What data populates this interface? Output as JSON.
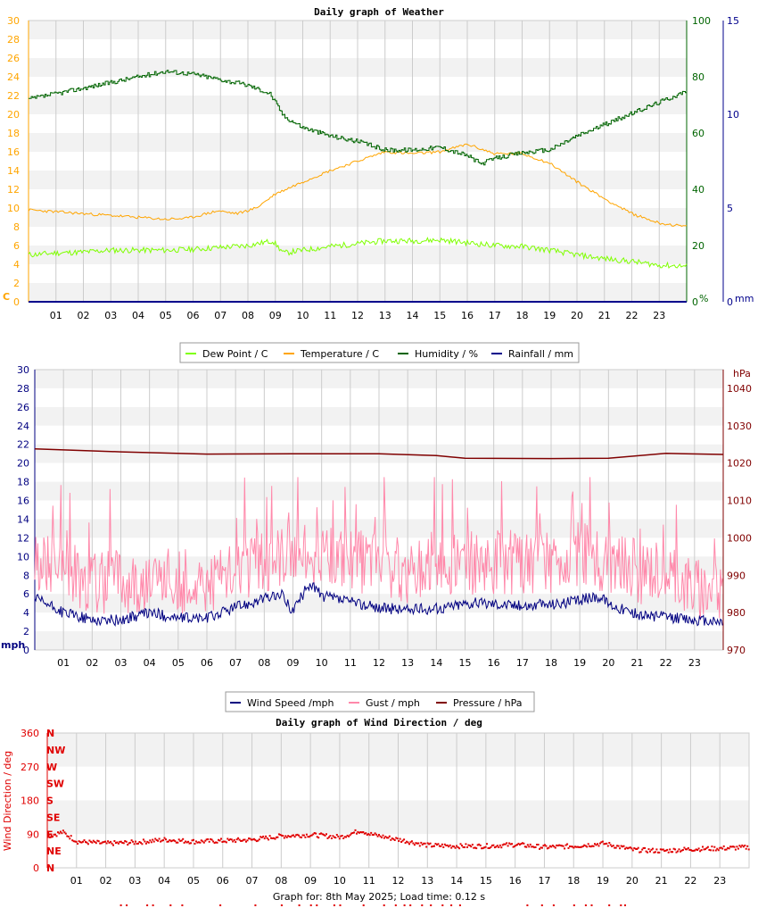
{
  "hours": [
    "01",
    "02",
    "03",
    "04",
    "05",
    "06",
    "07",
    "08",
    "09",
    "10",
    "11",
    "12",
    "13",
    "14",
    "15",
    "16",
    "17",
    "18",
    "19",
    "20",
    "21",
    "22",
    "23"
  ],
  "colors": {
    "dewpoint": "#7fff00",
    "temperature": "#ffa500",
    "humidity": "#006400",
    "rainfall": "#00008b",
    "wind": "#000080",
    "gust": "#ff88aa",
    "pressure": "#800000",
    "direction": "#e00000",
    "temp_axis": "#ffa500",
    "hum_axis": "#006400",
    "rain_axis": "#00008b",
    "wind_axis": "#000080",
    "pres_axis": "#800000",
    "dir_axis": "#e00000"
  },
  "chart_data": [
    {
      "type": "line",
      "title": "Daily graph of Weather",
      "left_axis": {
        "unit": "C",
        "ticks": [
          "0",
          "2",
          "4",
          "6",
          "8",
          "10",
          "12",
          "14",
          "16",
          "18",
          "20",
          "22",
          "24",
          "26",
          "28",
          "30"
        ],
        "range": [
          0,
          30
        ]
      },
      "mid_axis": {
        "unit": "%",
        "ticks": [
          "0",
          "20",
          "40",
          "60",
          "80",
          "100"
        ],
        "range": [
          0,
          100
        ]
      },
      "right_axis": {
        "unit": "mm",
        "ticks": [
          "0",
          "5",
          "10",
          "15"
        ],
        "range": [
          0,
          15
        ]
      },
      "x_hours_range": [
        0,
        24
      ],
      "series": [
        {
          "name": "Dew Point / C",
          "key": "dewpoint",
          "axis": "left",
          "points": [
            [
              0,
              5.0
            ],
            [
              1,
              5.2
            ],
            [
              2,
              5.3
            ],
            [
              3,
              5.5
            ],
            [
              4,
              5.5
            ],
            [
              5,
              5.5
            ],
            [
              6,
              5.6
            ],
            [
              7,
              5.8
            ],
            [
              8,
              6.0
            ],
            [
              8.9,
              6.5
            ],
            [
              9.3,
              5.2
            ],
            [
              10,
              5.5
            ],
            [
              11,
              5.9
            ],
            [
              12,
              6.2
            ],
            [
              13,
              6.5
            ],
            [
              14,
              6.5
            ],
            [
              15,
              6.6
            ],
            [
              16,
              6.3
            ],
            [
              17,
              6.0
            ],
            [
              18,
              5.9
            ],
            [
              19,
              5.5
            ],
            [
              20,
              5.0
            ],
            [
              21,
              4.6
            ],
            [
              22,
              4.3
            ],
            [
              23,
              3.9
            ],
            [
              24,
              3.8
            ]
          ]
        },
        {
          "name": "Temperature / C",
          "key": "temperature",
          "axis": "left",
          "points": [
            [
              0,
              9.8
            ],
            [
              1,
              9.6
            ],
            [
              2,
              9.4
            ],
            [
              3,
              9.2
            ],
            [
              4,
              9.0
            ],
            [
              5,
              8.8
            ],
            [
              5.8,
              8.9
            ],
            [
              6.9,
              9.7
            ],
            [
              7.6,
              9.4
            ],
            [
              8.3,
              10.0
            ],
            [
              9,
              11.5
            ],
            [
              10,
              12.8
            ],
            [
              11,
              14.0
            ],
            [
              12,
              15.0
            ],
            [
              13,
              16.0
            ],
            [
              14,
              15.8
            ],
            [
              15,
              16.0
            ],
            [
              16,
              16.8
            ],
            [
              17,
              15.8
            ],
            [
              18,
              15.8
            ],
            [
              19,
              14.8
            ],
            [
              20,
              12.8
            ],
            [
              21,
              11.0
            ],
            [
              22,
              9.4
            ],
            [
              23,
              8.4
            ],
            [
              24,
              8.0
            ]
          ]
        },
        {
          "name": "Humidity / %",
          "key": "humidity",
          "axis": "mid",
          "points": [
            [
              0,
              72
            ],
            [
              1,
              74
            ],
            [
              2,
              76
            ],
            [
              3,
              78
            ],
            [
              4,
              80
            ],
            [
              5,
              82
            ],
            [
              6,
              81
            ],
            [
              7,
              79
            ],
            [
              8,
              77
            ],
            [
              8.8,
              74
            ],
            [
              9.3,
              66
            ],
            [
              10,
              62
            ],
            [
              11,
              59
            ],
            [
              12,
              57
            ],
            [
              13,
              54
            ],
            [
              14,
              54
            ],
            [
              15,
              55
            ],
            [
              16,
              52
            ],
            [
              16.5,
              49
            ],
            [
              17,
              51
            ],
            [
              18,
              53
            ],
            [
              19,
              54
            ],
            [
              20,
              59
            ],
            [
              21,
              63
            ],
            [
              22,
              67
            ],
            [
              23,
              71
            ],
            [
              24,
              75
            ]
          ]
        },
        {
          "name": "Rainfall / mm",
          "key": "rainfall",
          "axis": "right",
          "points": [
            [
              0,
              0
            ],
            [
              24,
              0
            ]
          ]
        }
      ]
    },
    {
      "type": "line",
      "left_axis": {
        "unit": "mph",
        "ticks": [
          "0",
          "2",
          "4",
          "6",
          "8",
          "10",
          "12",
          "14",
          "16",
          "18",
          "20",
          "22",
          "24",
          "26",
          "28",
          "30"
        ],
        "range": [
          0,
          30
        ]
      },
      "right_axis": {
        "unit": "hPa",
        "ticks": [
          "970",
          "980",
          "990",
          "1000",
          "1010",
          "1020",
          "1030",
          "1040"
        ],
        "range": [
          970,
          1045
        ]
      },
      "x_hours_range": [
        0,
        24
      ],
      "series": [
        {
          "name": "Wind Speed /mph",
          "key": "wind",
          "axis": "left",
          "points": [
            [
              0,
              5.5
            ],
            [
              1,
              4.0
            ],
            [
              2,
              3.2
            ],
            [
              3,
              3.2
            ],
            [
              4,
              4.0
            ],
            [
              5,
              3.4
            ],
            [
              6,
              3.4
            ],
            [
              7,
              4.6
            ],
            [
              8,
              5.5
            ],
            [
              8.6,
              5.9
            ],
            [
              9,
              4.2
            ],
            [
              9.6,
              7.2
            ],
            [
              10,
              5.8
            ],
            [
              11,
              5.1
            ],
            [
              12,
              4.5
            ],
            [
              13,
              4.3
            ],
            [
              14,
              4.4
            ],
            [
              15,
              5.0
            ],
            [
              16,
              5.0
            ],
            [
              17,
              4.7
            ],
            [
              18,
              4.9
            ],
            [
              19,
              5.3
            ],
            [
              19.6,
              5.8
            ],
            [
              20,
              5.0
            ],
            [
              21,
              3.8
            ],
            [
              22,
              3.5
            ],
            [
              23,
              3.2
            ],
            [
              24,
              3.0
            ]
          ]
        },
        {
          "name": "Gust / mph",
          "key": "gust",
          "axis": "left",
          "points": [
            [
              0,
              9
            ],
            [
              1,
              8
            ],
            [
              2,
              7
            ],
            [
              3,
              7
            ],
            [
              4,
              7
            ],
            [
              5,
              7
            ],
            [
              6,
              7
            ],
            [
              7,
              8
            ],
            [
              8,
              9
            ],
            [
              9,
              10
            ],
            [
              10,
              10
            ],
            [
              11,
              9
            ],
            [
              12,
              9
            ],
            [
              13,
              8
            ],
            [
              14,
              9
            ],
            [
              15,
              9
            ],
            [
              16,
              9
            ],
            [
              17,
              9
            ],
            [
              18,
              9
            ],
            [
              19,
              10
            ],
            [
              20,
              9
            ],
            [
              21,
              8
            ],
            [
              22,
              8
            ],
            [
              23,
              6
            ],
            [
              24,
              6
            ]
          ]
        },
        {
          "name": "Pressure / hPa",
          "key": "pressure",
          "axis": "right",
          "points": [
            [
              0,
              1023.8
            ],
            [
              3,
              1023.0
            ],
            [
              6,
              1022.4
            ],
            [
              9,
              1022.5
            ],
            [
              12,
              1022.5
            ],
            [
              14,
              1022.0
            ],
            [
              15,
              1021.3
            ],
            [
              18,
              1021.2
            ],
            [
              20,
              1021.3
            ],
            [
              22,
              1022.6
            ],
            [
              24,
              1022.3
            ]
          ]
        }
      ]
    },
    {
      "type": "scatter",
      "title": "Daily graph of Wind Direction / deg",
      "ylabel": "Wind Direction / deg",
      "y_ticks": [
        "0",
        "90",
        "180",
        "270",
        "360"
      ],
      "y_range": [
        0,
        360
      ],
      "compass": [
        "N",
        "NE",
        "E",
        "SE",
        "S",
        "SW",
        "W",
        "NW",
        "N"
      ],
      "x_hours_range": [
        0,
        24
      ],
      "series": [
        {
          "name": "Wind Direction",
          "key": "direction",
          "points": [
            [
              0,
              85
            ],
            [
              0.5,
              95
            ],
            [
              1,
              70
            ],
            [
              2,
              65
            ],
            [
              3,
              68
            ],
            [
              4,
              75
            ],
            [
              5,
              70
            ],
            [
              6,
              72
            ],
            [
              7,
              75
            ],
            [
              8,
              85
            ],
            [
              9,
              88
            ],
            [
              10,
              82
            ],
            [
              10.7,
              100
            ],
            [
              11,
              90
            ],
            [
              12,
              75
            ],
            [
              13,
              60
            ],
            [
              14,
              58
            ],
            [
              15,
              58
            ],
            [
              16,
              62
            ],
            [
              17,
              55
            ],
            [
              18,
              58
            ],
            [
              19,
              65
            ],
            [
              20,
              48
            ],
            [
              21,
              45
            ],
            [
              22,
              50
            ],
            [
              23,
              52
            ],
            [
              24,
              55
            ]
          ]
        }
      ]
    }
  ],
  "legends": {
    "weather": [
      "Dew Point / C",
      "Temperature / C",
      "Humidity / %",
      "Rainfall / mm"
    ],
    "wind": [
      "Wind Speed /mph",
      "Gust / mph",
      "Pressure / hPa"
    ]
  },
  "footer": "Graph for: 8th May 2025; Load time: 0.12 s"
}
